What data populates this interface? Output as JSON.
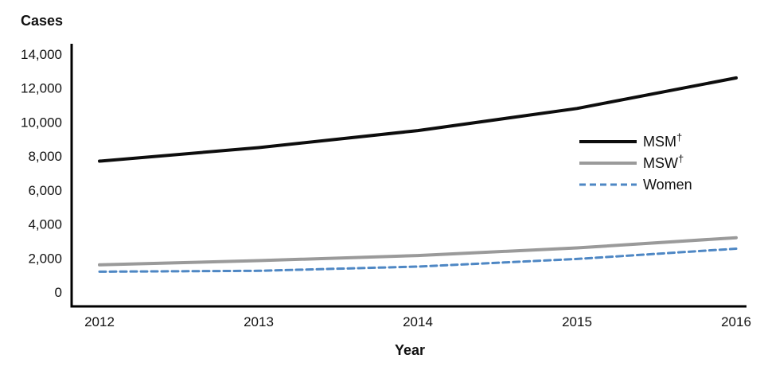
{
  "chart_data": {
    "type": "line",
    "x": [
      2012,
      2013,
      2014,
      2015,
      2016
    ],
    "series": [
      {
        "name": "MSM",
        "dagger": "†",
        "color": "#0d0d0d",
        "dash": "solid",
        "width": 4,
        "values": [
          7700,
          8500,
          9500,
          10800,
          12600
        ]
      },
      {
        "name": "MSW",
        "dagger": "†",
        "color": "#9a9a9a",
        "dash": "solid",
        "width": 4,
        "values": [
          1600,
          1850,
          2150,
          2600,
          3200
        ]
      },
      {
        "name": "Women",
        "dagger": "",
        "color": "#4e87c4",
        "dash": "dashed",
        "width": 3,
        "values": [
          1200,
          1250,
          1500,
          1950,
          2550
        ]
      }
    ],
    "xlabel": "Year",
    "ylabel": "Cases",
    "ylim": [
      0,
      14000
    ],
    "ytick_step": 2000,
    "ytick_labels": [
      "0",
      "2,000",
      "4,000",
      "6,000",
      "8,000",
      "10,000",
      "12,000",
      "14,000"
    ],
    "xtick_labels": [
      "2012",
      "2013",
      "2014",
      "2015",
      "2016"
    ],
    "grid": false,
    "legend_position": "right-center",
    "axis_color": "#000000",
    "text_color": "#111111"
  }
}
